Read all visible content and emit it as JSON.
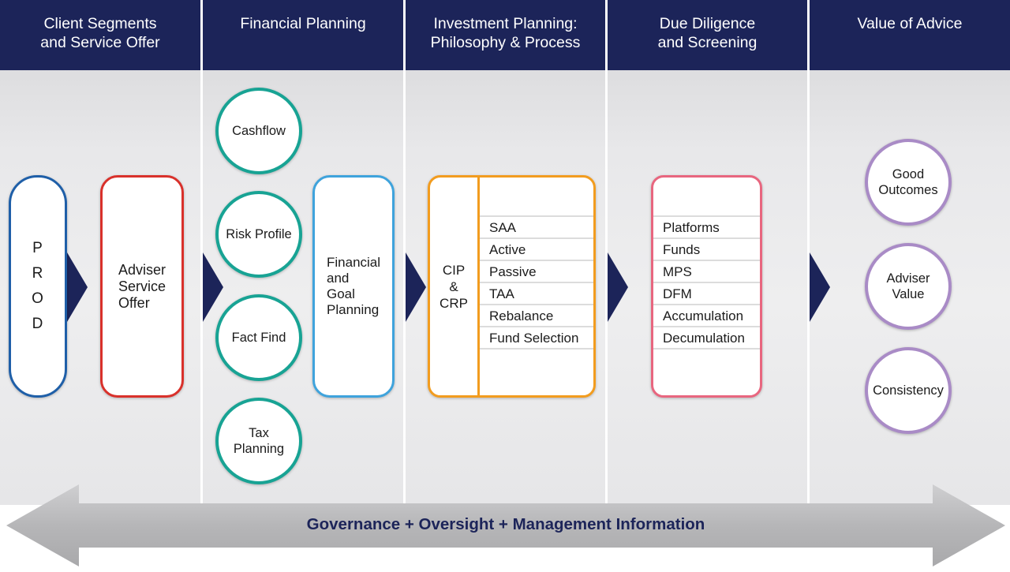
{
  "columns": [
    {
      "title": "Client Segments\nand Service Offer"
    },
    {
      "title": "Financial Planning"
    },
    {
      "title": "Investment Planning:\nPhilosophy & Process"
    },
    {
      "title": "Due Diligence\nand Screening"
    },
    {
      "title": "Value of Advice"
    }
  ],
  "client_segments": {
    "prod": "P\nR\nO\nD",
    "adviser_service_offer": "Adviser\nService\nOffer"
  },
  "financial_planning": {
    "circles": [
      "Cashflow",
      "Risk Profile",
      "Fact Find",
      "Tax\nPlanning"
    ],
    "goal_planning": "Financial\nand\nGoal\nPlanning"
  },
  "investment_planning": {
    "side_label": "CIP\n&\nCRP",
    "items": [
      "SAA",
      "Active",
      "Passive",
      "TAA",
      "Rebalance",
      "Fund Selection"
    ]
  },
  "due_diligence": {
    "items": [
      "Platforms",
      "Funds",
      "MPS",
      "DFM",
      "Accumulation",
      "Decumulation"
    ]
  },
  "value_of_advice": {
    "circles": [
      "Good\nOutcomes",
      "Adviser\nValue",
      "Consistency"
    ]
  },
  "footer": {
    "label": "Governance + Oversight + Management Information"
  },
  "colors": {
    "header_navy": "#1c2459",
    "prod_blue": "#1f5fa8",
    "adviser_red": "#d9312b",
    "teal": "#18a394",
    "light_blue": "#3fa3dc",
    "orange": "#f29c1f",
    "pink": "#e8667f",
    "purple": "#a98bc6",
    "arrow_grey": "#b9b9bb"
  }
}
